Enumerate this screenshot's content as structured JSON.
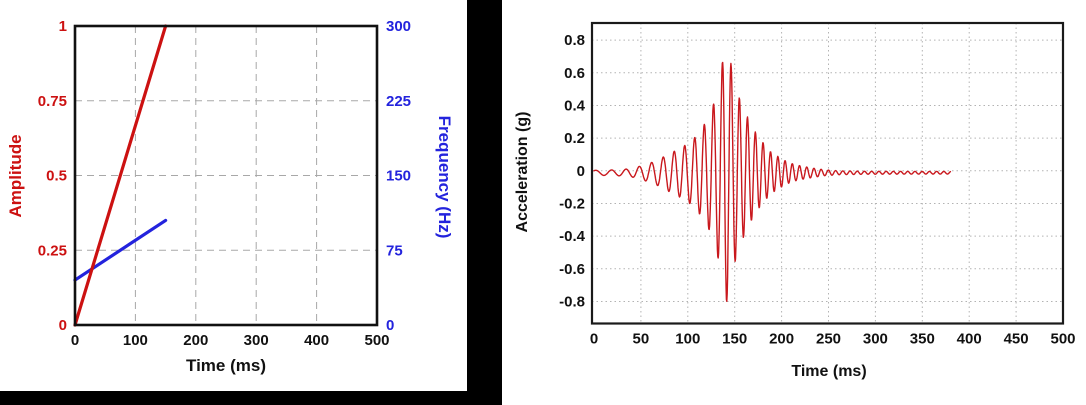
{
  "window": {
    "background": "#000000",
    "panel_background": "#ffffff"
  },
  "chart_data": [
    {
      "id": "input-sweep-chart",
      "type": "line",
      "title": "",
      "xlabel": "Time (ms)",
      "xlim": [
        0,
        500
      ],
      "x_ticks": [
        0,
        100,
        200,
        300,
        400,
        500
      ],
      "x_tick_labels": [
        "0",
        "100",
        "200",
        "300",
        "400",
        "500"
      ],
      "grid": "dashed",
      "grid_color": "#a8a8a8",
      "frame_color": "#111111",
      "axes": {
        "left": {
          "label": "Amplitude",
          "color": "#cc1111",
          "lim": [
            0,
            1
          ],
          "ticks": [
            0,
            0.25,
            0.5,
            0.75,
            1
          ],
          "tick_labels": [
            "0",
            "0.25",
            "0.5",
            "0.75",
            "1"
          ]
        },
        "right": {
          "label": "Frequency (Hz)",
          "color": "#2323dd",
          "lim": [
            0,
            300
          ],
          "ticks": [
            0,
            75,
            150,
            225,
            300
          ],
          "tick_labels": [
            "0",
            "75",
            "150",
            "225",
            "300"
          ]
        }
      },
      "series": [
        {
          "name": "frequency-sweep-line",
          "axis": "right",
          "color": "#2323dd",
          "width": 3.2,
          "points": [
            [
              0,
              45
            ],
            [
              150,
              105
            ]
          ]
        },
        {
          "name": "amplitude-ramp-line",
          "axis": "left",
          "color": "#cc1111",
          "width": 3.2,
          "points": [
            [
              0,
              0
            ],
            [
              150,
              1
            ]
          ]
        }
      ]
    },
    {
      "id": "acceleration-chart",
      "type": "line",
      "title": "",
      "xlabel": "Time (ms)",
      "ylabel": "Acceleration (g)",
      "xlim": [
        0,
        500
      ],
      "ylim": [
        -0.935,
        0.905
      ],
      "x_ticks": [
        0,
        50,
        100,
        150,
        200,
        250,
        300,
        350,
        400,
        450,
        500
      ],
      "x_tick_labels": [
        "0",
        "50",
        "100",
        "150",
        "200",
        "250",
        "300",
        "350",
        "400",
        "450",
        "500"
      ],
      "y_ticks": [
        0.8,
        0.6,
        0.4,
        0.2,
        0,
        -0.2,
        -0.4,
        -0.6,
        -0.8
      ],
      "y_tick_labels": [
        "0.8",
        "0.6",
        "0.4",
        "0.2",
        "0",
        "-0.2",
        "-0.4",
        "-0.6",
        "-0.8"
      ],
      "grid": "dotted",
      "grid_color": "#b3b3b3",
      "frame_color": "#1a1a1a",
      "series": [
        {
          "name": "acceleration-waveform",
          "color": "#c9181d",
          "width": 1.4,
          "synth": {
            "t_start": 0,
            "t_end": 380,
            "dt": 0.4,
            "baseline_g": -0.012,
            "freq_start_hz": 55,
            "freq_sweep_hz_per_ms": 0.38,
            "freq_max_hz": 130,
            "peak_time_ms": 140,
            "peak_g": 0.82,
            "min_g": -0.75,
            "envelope": [
              [
                0,
                0.015
              ],
              [
                25,
                0.018
              ],
              [
                40,
                0.025
              ],
              [
                55,
                0.05
              ],
              [
                65,
                0.07
              ],
              [
                75,
                0.1
              ],
              [
                85,
                0.13
              ],
              [
                95,
                0.16
              ],
              [
                105,
                0.2
              ],
              [
                115,
                0.27
              ],
              [
                122,
                0.34
              ],
              [
                128,
                0.43
              ],
              [
                133,
                0.54
              ],
              [
                137,
                0.68
              ],
              [
                140,
                0.82
              ],
              [
                143,
                0.76
              ],
              [
                147,
                0.64
              ],
              [
                151,
                0.53
              ],
              [
                156,
                0.44
              ],
              [
                162,
                0.36
              ],
              [
                168,
                0.29
              ],
              [
                174,
                0.23
              ],
              [
                181,
                0.18
              ],
              [
                188,
                0.13
              ],
              [
                196,
                0.1
              ],
              [
                205,
                0.07
              ],
              [
                214,
                0.05
              ],
              [
                224,
                0.038
              ],
              [
                234,
                0.028
              ],
              [
                246,
                0.018
              ],
              [
                260,
                0.012
              ],
              [
                290,
                0.009
              ],
              [
                380,
                0.008
              ]
            ]
          }
        }
      ]
    }
  ]
}
